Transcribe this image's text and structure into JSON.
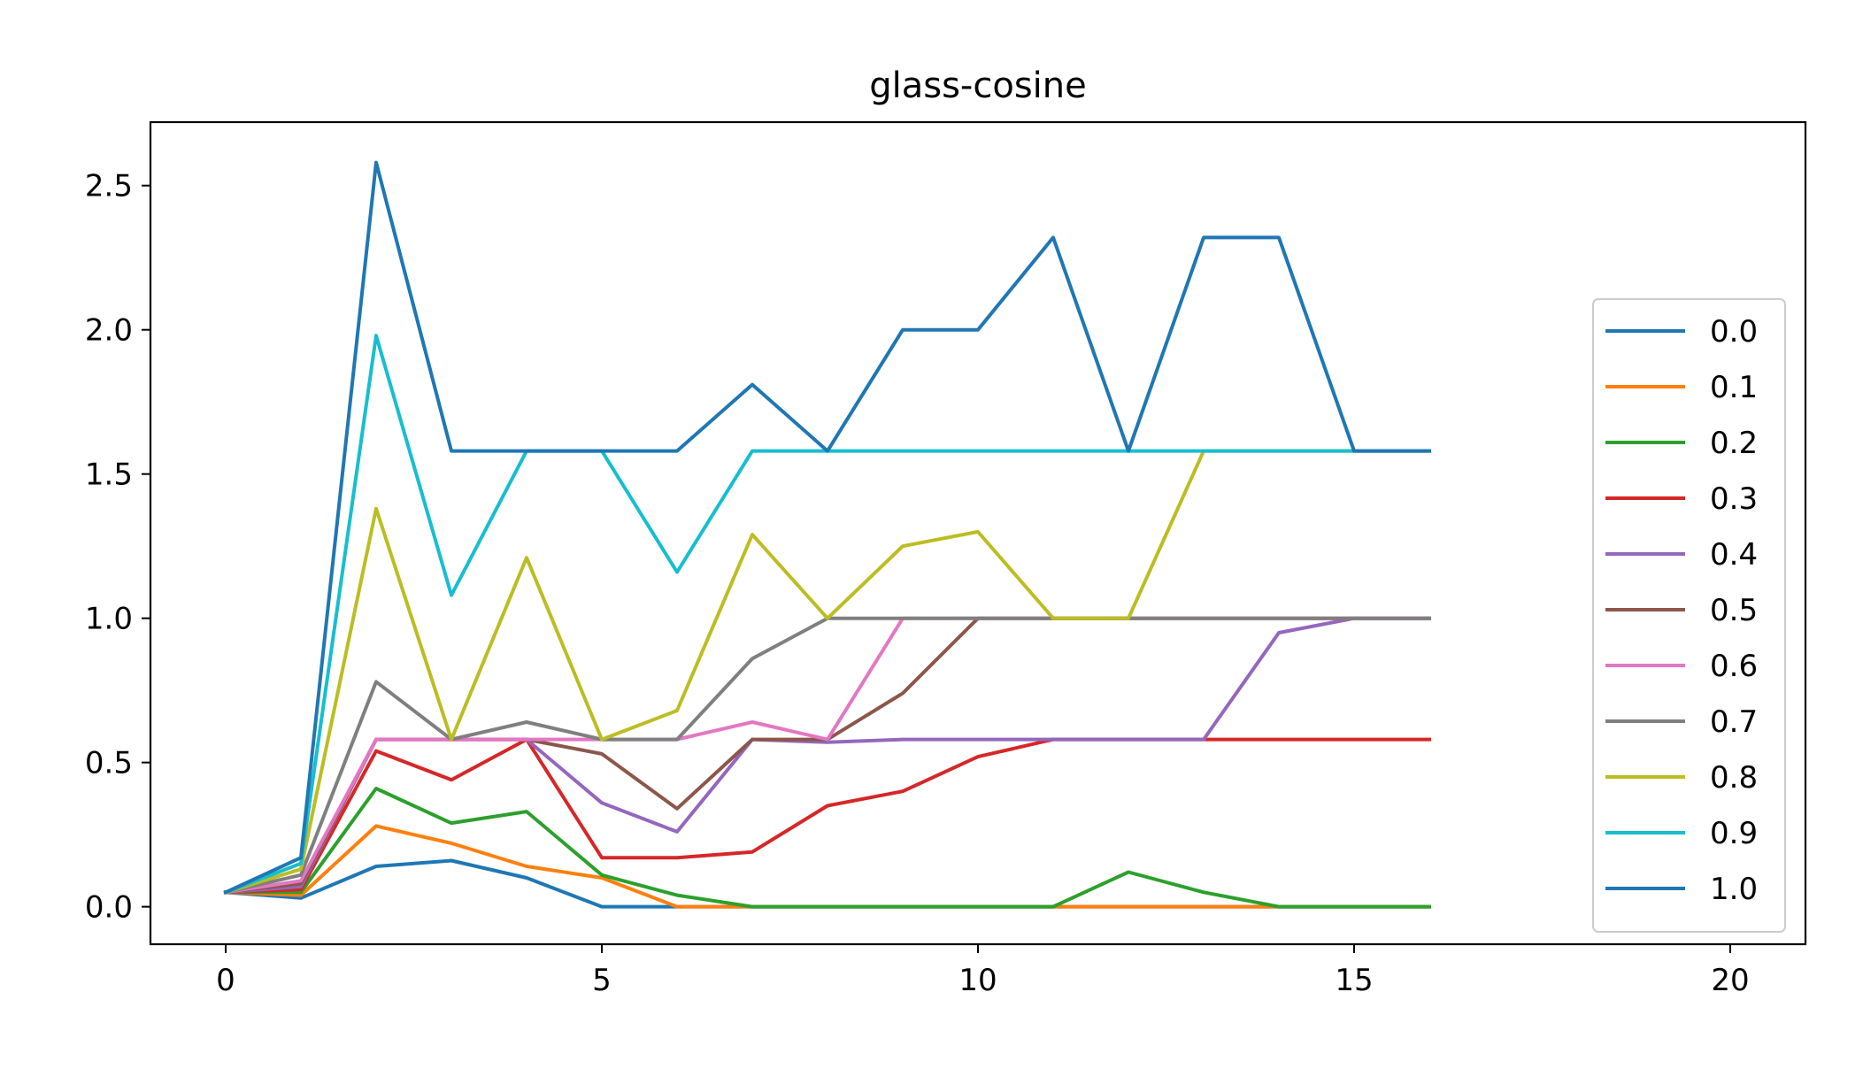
{
  "chart_data": {
    "type": "line",
    "title": "glass-cosine",
    "xlabel": "",
    "ylabel": "",
    "xlim": [
      -1,
      21
    ],
    "ylim": [
      -0.13,
      2.72
    ],
    "xticks": [
      0,
      5,
      10,
      15,
      20
    ],
    "xtick_labels": [
      "0",
      "5",
      "10",
      "15",
      "20"
    ],
    "yticks": [
      0.0,
      0.5,
      1.0,
      1.5,
      2.0,
      2.5
    ],
    "ytick_labels": [
      "0.0",
      "0.5",
      "1.0",
      "1.5",
      "2.0",
      "2.5"
    ],
    "grid": false,
    "legend_position": "right",
    "x": [
      0,
      1,
      2,
      3,
      4,
      5,
      6,
      7,
      8,
      9,
      10,
      11,
      12,
      13,
      14,
      15,
      16
    ],
    "series": [
      {
        "name": "0.0",
        "color": "#1f77b4",
        "values": [
          0.05,
          0.03,
          0.14,
          0.16,
          0.1,
          0.0,
          0.0,
          0.0,
          0.0,
          0.0,
          0.0,
          0.0,
          0.0,
          0.0,
          0.0,
          0.0,
          0.0
        ]
      },
      {
        "name": "0.1",
        "color": "#ff7f0e",
        "values": [
          0.05,
          0.04,
          0.28,
          0.22,
          0.14,
          0.1,
          0.0,
          0.0,
          0.0,
          0.0,
          0.0,
          0.0,
          0.0,
          0.0,
          0.0,
          0.0,
          0.0
        ]
      },
      {
        "name": "0.2",
        "color": "#2ca02c",
        "values": [
          0.05,
          0.05,
          0.41,
          0.29,
          0.33,
          0.11,
          0.04,
          0.0,
          0.0,
          0.0,
          0.0,
          0.0,
          0.12,
          0.05,
          0.0,
          0.0,
          0.0
        ]
      },
      {
        "name": "0.3",
        "color": "#d62728",
        "values": [
          0.05,
          0.06,
          0.54,
          0.44,
          0.58,
          0.17,
          0.17,
          0.19,
          0.35,
          0.4,
          0.52,
          0.58,
          0.58,
          0.58,
          0.58,
          0.58,
          0.58
        ]
      },
      {
        "name": "0.4",
        "color": "#9467bd",
        "values": [
          0.05,
          0.07,
          0.58,
          0.58,
          0.58,
          0.36,
          0.26,
          0.58,
          0.57,
          0.58,
          0.58,
          0.58,
          0.58,
          0.58,
          0.95,
          1.0,
          1.0
        ]
      },
      {
        "name": "0.5",
        "color": "#8c564b",
        "values": [
          0.05,
          0.08,
          0.58,
          0.58,
          0.58,
          0.53,
          0.34,
          0.58,
          0.58,
          0.74,
          1.0,
          1.0,
          1.0,
          1.0,
          1.0,
          1.0,
          1.0
        ]
      },
      {
        "name": "0.6",
        "color": "#e377c2",
        "values": [
          0.05,
          0.09,
          0.58,
          0.58,
          0.58,
          0.58,
          0.58,
          0.64,
          0.58,
          1.0,
          1.0,
          1.0,
          1.0,
          1.0,
          1.0,
          1.0,
          1.0
        ]
      },
      {
        "name": "0.7",
        "color": "#7f7f7f",
        "values": [
          0.05,
          0.11,
          0.78,
          0.58,
          0.64,
          0.58,
          0.58,
          0.86,
          1.0,
          1.0,
          1.0,
          1.0,
          1.0,
          1.0,
          1.0,
          1.0,
          1.0
        ]
      },
      {
        "name": "0.8",
        "color": "#bcbd22",
        "values": [
          0.05,
          0.13,
          1.38,
          0.58,
          1.21,
          0.58,
          0.68,
          1.29,
          1.0,
          1.25,
          1.3,
          1.0,
          1.0,
          1.58,
          1.58,
          1.58,
          1.58
        ]
      },
      {
        "name": "0.9",
        "color": "#17becf",
        "values": [
          0.05,
          0.15,
          1.98,
          1.08,
          1.58,
          1.58,
          1.16,
          1.58,
          1.58,
          1.58,
          1.58,
          1.58,
          1.58,
          1.58,
          1.58,
          1.58,
          1.58
        ]
      },
      {
        "name": "1.0",
        "color": "#1f77b4",
        "values": [
          0.05,
          0.17,
          2.58,
          1.58,
          1.58,
          1.58,
          1.58,
          1.81,
          1.58,
          2.0,
          2.0,
          2.32,
          1.58,
          2.32,
          2.32,
          1.58,
          1.58
        ]
      }
    ]
  }
}
